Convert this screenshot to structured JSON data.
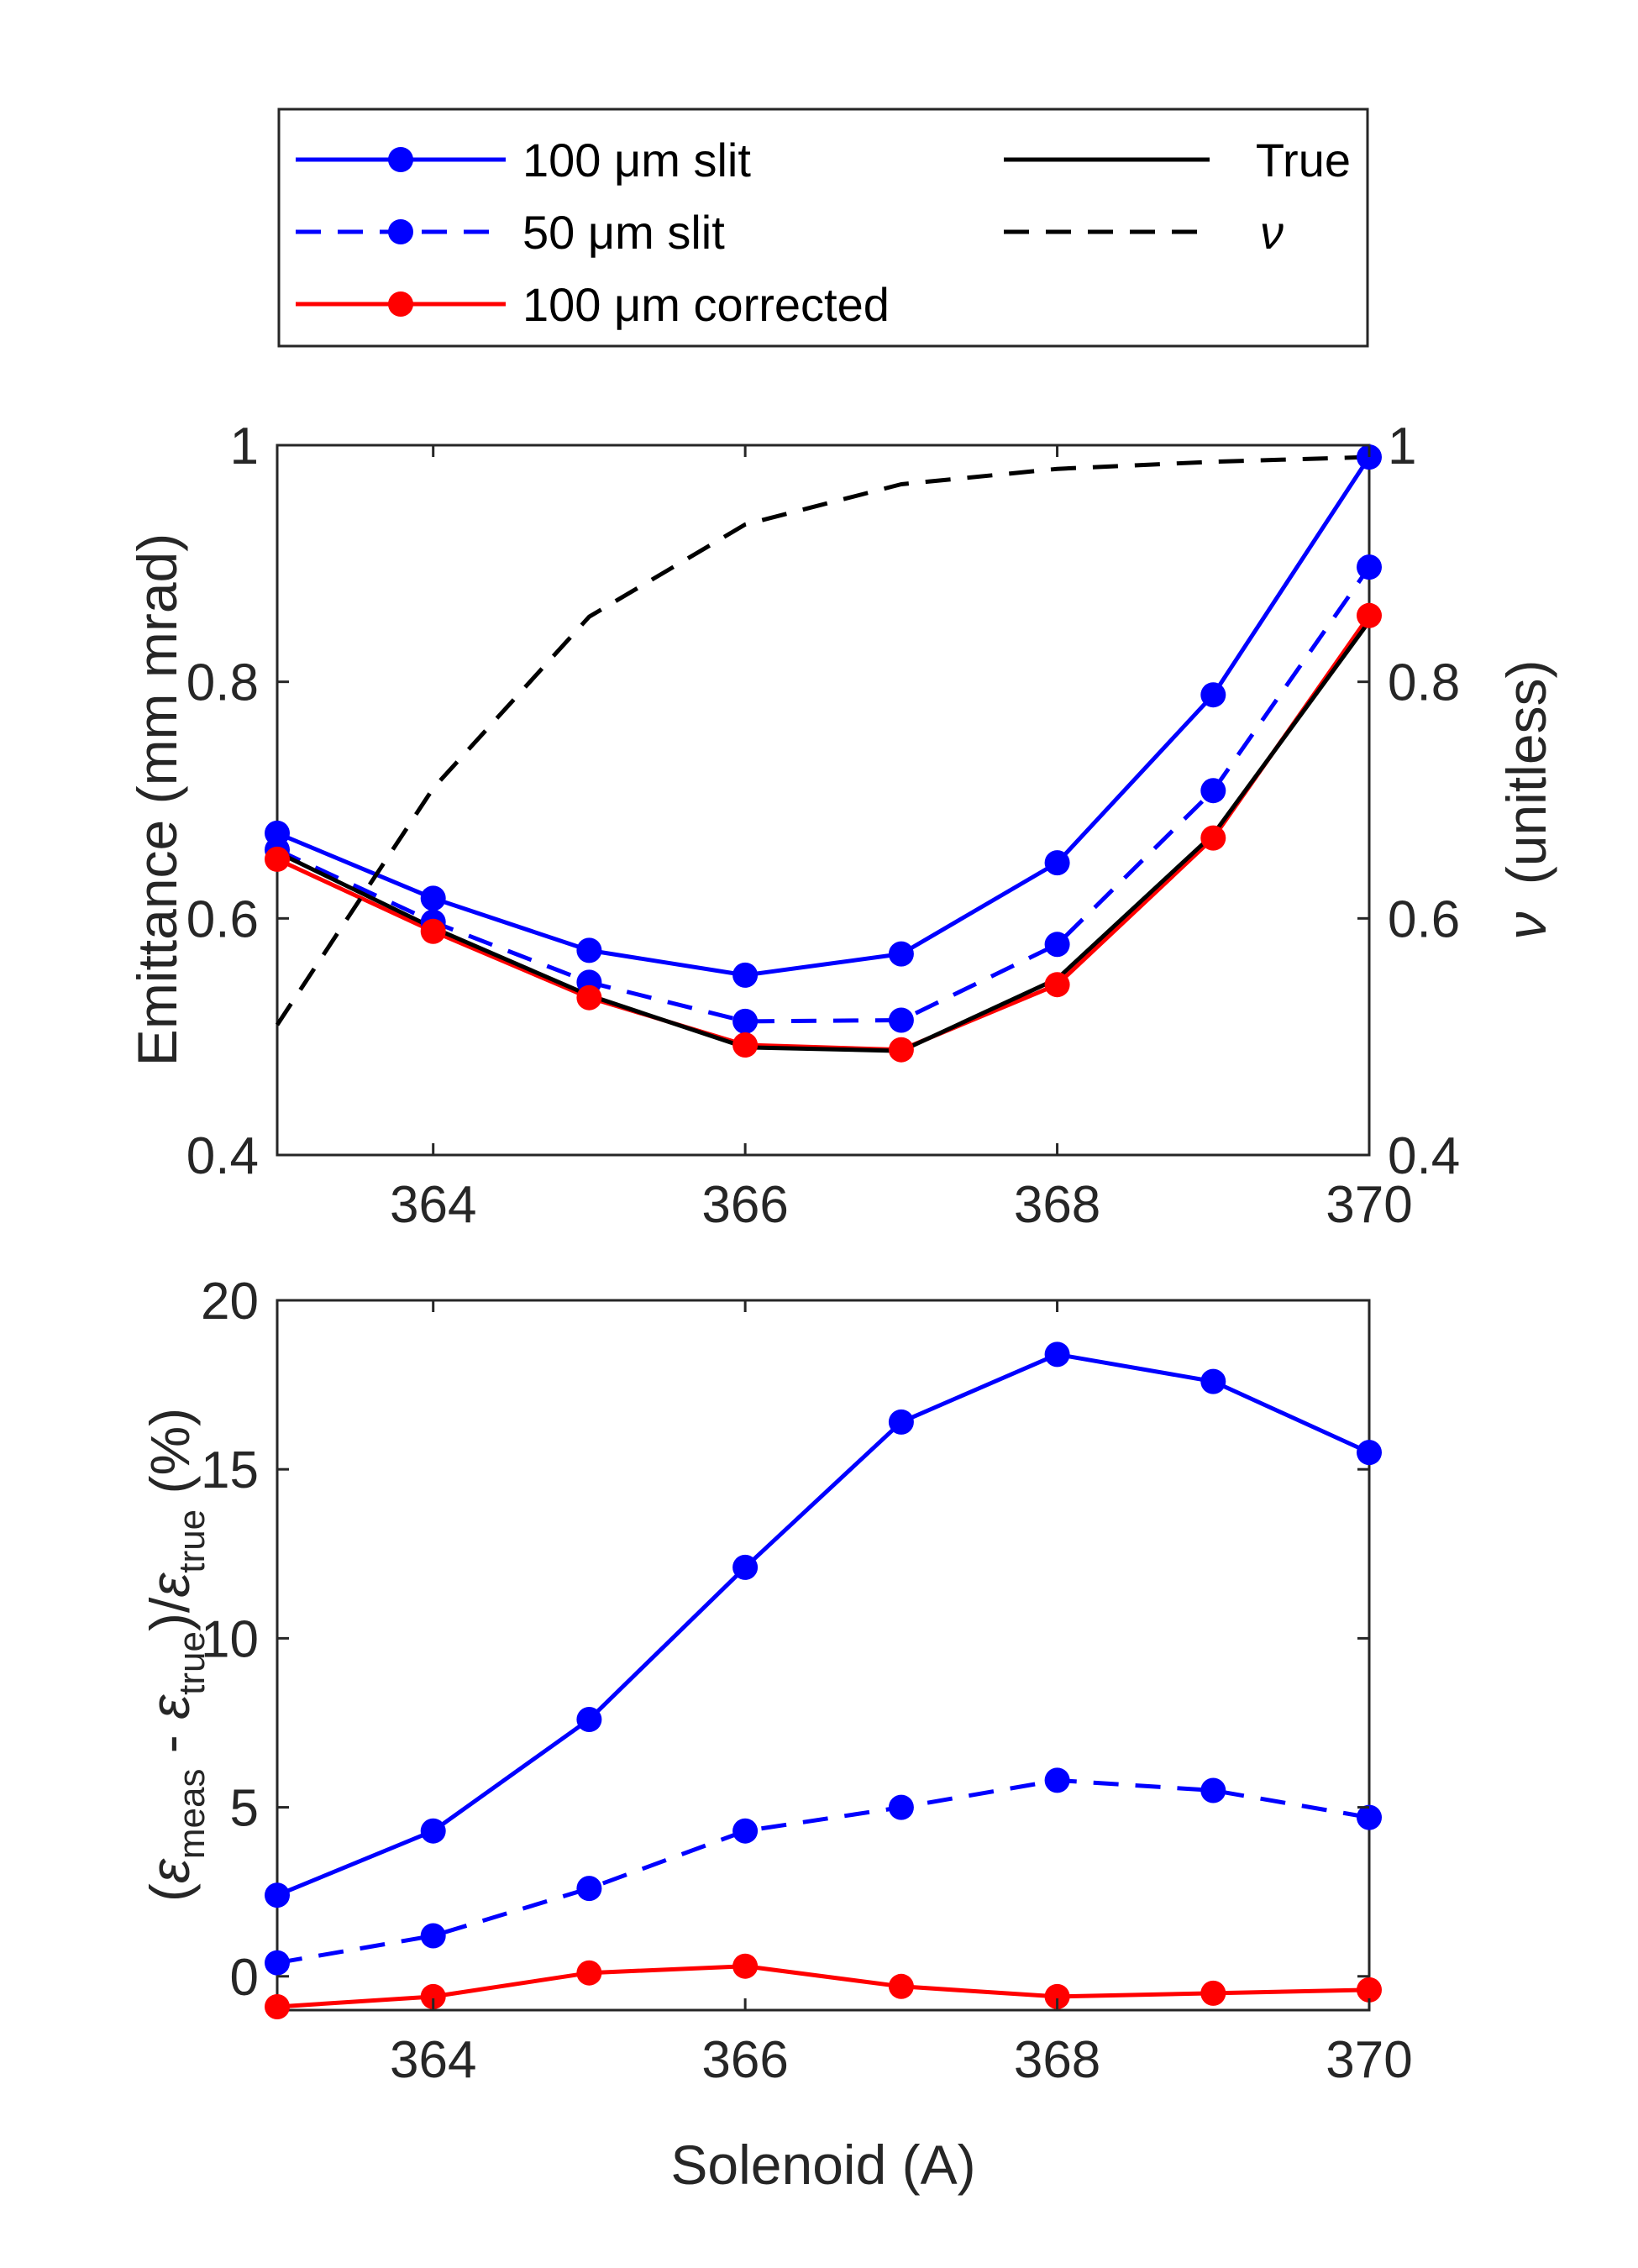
{
  "chart_data": [
    {
      "type": "line",
      "panel": "top",
      "ylabel": "Emittance (mm mrad)",
      "y2label": "(unitless)",
      "y2label_symbol": "ν",
      "xlim": [
        363,
        370
      ],
      "ylim": [
        0.4,
        1.0
      ],
      "y2lim": [
        0.4,
        1.0
      ],
      "x_ticks": [
        "364",
        "366",
        "368",
        "370"
      ],
      "y_ticks": [
        "0.4",
        "0.6",
        "0.8",
        "1"
      ],
      "y2_ticks": [
        "0.4",
        "0.6",
        "0.8",
        "1"
      ],
      "grid": false,
      "legend_position": "top (outside)",
      "x": [
        363,
        364,
        365,
        366,
        367,
        368,
        369,
        370
      ],
      "series": [
        {
          "name": "100 μm slit",
          "color": "#0000ff",
          "style": "solid",
          "marker": true,
          "axis": "left",
          "values": [
            0.672,
            0.617,
            0.573,
            0.552,
            0.57,
            0.647,
            0.789,
            0.99
          ]
        },
        {
          "name": "50 μm slit",
          "color": "#0000ff",
          "style": "dashed",
          "marker": true,
          "axis": "left",
          "values": [
            0.658,
            0.597,
            0.546,
            0.513,
            0.514,
            0.578,
            0.708,
            0.897
          ]
        },
        {
          "name": "100 μm corrected",
          "color": "#ff0000",
          "style": "solid",
          "marker": true,
          "axis": "left",
          "values": [
            0.65,
            0.589,
            0.533,
            0.493,
            0.489,
            0.544,
            0.668,
            0.856
          ]
        },
        {
          "name": "True",
          "color": "#000000",
          "style": "solid",
          "marker": false,
          "axis": "left",
          "values": [
            0.656,
            0.592,
            0.535,
            0.491,
            0.488,
            0.549,
            0.671,
            0.851
          ]
        },
        {
          "name": "ν",
          "color": "#000000",
          "style": "dashed",
          "marker": false,
          "axis": "right",
          "values": [
            0.51,
            0.71,
            0.855,
            0.933,
            0.967,
            0.98,
            0.986,
            0.99
          ]
        }
      ]
    },
    {
      "type": "line",
      "panel": "bottom",
      "xlabel": "Solenoid (A)",
      "xlim": [
        363,
        370
      ],
      "ylim": [
        -1,
        20
      ],
      "x_ticks": [
        "364",
        "366",
        "368",
        "370"
      ],
      "y_ticks": [
        "0",
        "5",
        "10",
        "15",
        "20"
      ],
      "grid": false,
      "x": [
        363,
        364,
        365,
        366,
        367,
        368,
        369,
        370
      ],
      "series": [
        {
          "name": "100 μm slit",
          "color": "#0000ff",
          "style": "solid",
          "marker": true,
          "values": [
            2.4,
            4.3,
            7.6,
            12.1,
            16.4,
            18.4,
            17.6,
            15.5
          ]
        },
        {
          "name": "50 μm slit",
          "color": "#0000ff",
          "style": "dashed",
          "marker": true,
          "values": [
            0.4,
            1.2,
            2.6,
            4.3,
            5.0,
            5.8,
            5.5,
            4.7
          ]
        },
        {
          "name": "100 μm corrected",
          "color": "#ff0000",
          "style": "solid",
          "marker": true,
          "values": [
            -0.9,
            -0.6,
            0.1,
            0.3,
            -0.3,
            -0.6,
            -0.5,
            -0.4
          ]
        }
      ]
    }
  ]
}
